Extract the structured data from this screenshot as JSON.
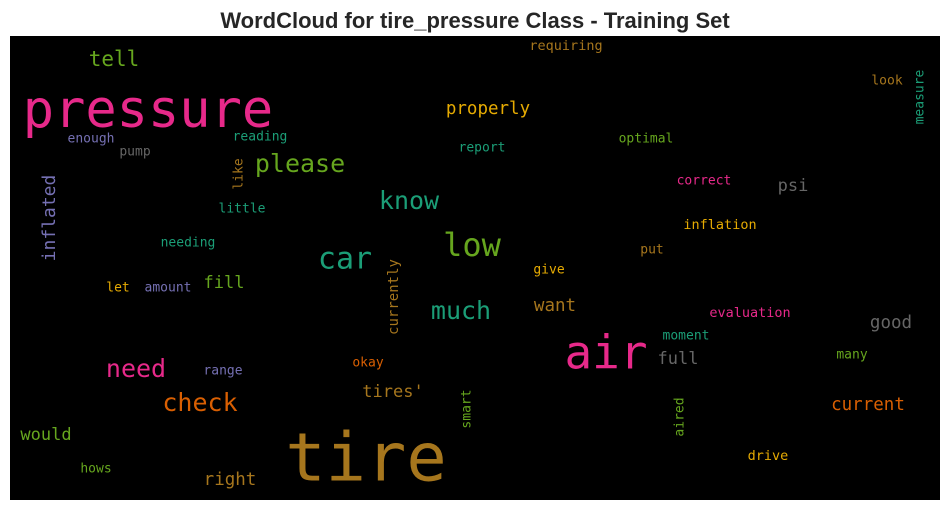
{
  "title": "WordCloud for tire_pressure Class - Training Set",
  "words": [
    "pressure",
    "tire",
    "air",
    "car",
    "low",
    "know",
    "please",
    "much",
    "need",
    "check",
    "tell",
    "properly",
    "psi",
    "good",
    "current",
    "want",
    "full",
    "fill",
    "tires'",
    "right",
    "would",
    "inflated",
    "currently",
    "measure",
    "smart",
    "aired",
    "like",
    "requiring",
    "look",
    "reading",
    "enough",
    "pump",
    "report",
    "optimal",
    "correct",
    "little",
    "needing",
    "inflation",
    "put",
    "give",
    "let",
    "amount",
    "evaluation",
    "moment",
    "many",
    "okay",
    "range",
    "hows",
    "drive"
  ]
}
